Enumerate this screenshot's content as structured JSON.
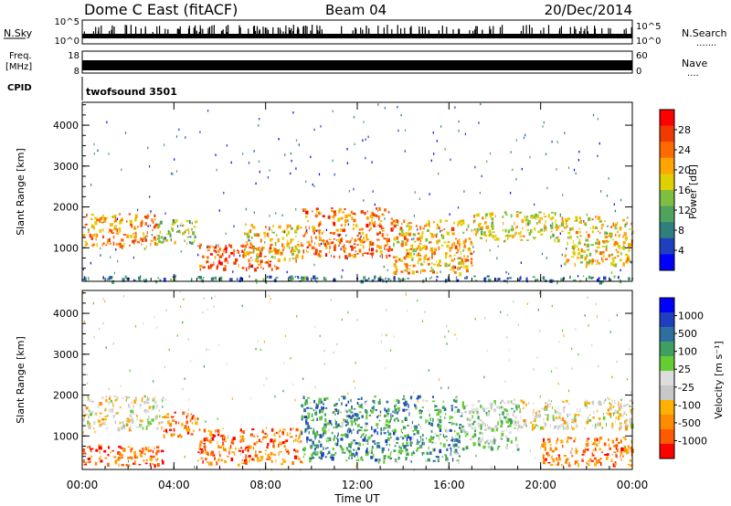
{
  "header": {
    "station": "Dome C East (fitACF)",
    "beam": "Beam 04",
    "date": "20/Dec/2014"
  },
  "strip_nsky": {
    "label": "N.Sky",
    "ticks_left": [
      "10^5",
      "10^0"
    ],
    "ticks_right": [
      "10^5",
      "10^0"
    ],
    "right_label": "N.Search",
    "right_dots": "......."
  },
  "strip_freq": {
    "label_top": "Freq.",
    "label_unit": "[MHz]",
    "ticks_left": [
      "18",
      "8"
    ],
    "ticks_right": [
      "60",
      "0"
    ],
    "right_label": "Nave",
    "right_dots": "...."
  },
  "strip_cpid": {
    "label": "CPID",
    "program": "twofsound 3501"
  },
  "colors": {
    "power": [
      "#0000ff",
      "#1f3fbf",
      "#2f7f7f",
      "#4fa35f",
      "#7fbf3f",
      "#dfd000",
      "#ffa500",
      "#ff6a00",
      "#ef3a00",
      "#ff0000"
    ],
    "velocity": [
      "#ff0000",
      "#ff5a00",
      "#ff8c00",
      "#ffb000",
      "#c8c8c8",
      "#dddddd",
      "#66cc33",
      "#3f9f5f",
      "#2f6fa0",
      "#1f3fbf",
      "#0000ff"
    ]
  },
  "chart_data": [
    {
      "type": "heatmap",
      "title": "",
      "xlabel": "Time UT",
      "ylabel": "Slant Range [km]",
      "x_ticks": [
        "00:00",
        "04:00",
        "08:00",
        "12:00",
        "16:00",
        "20:00",
        "00:00"
      ],
      "xlim_hours": [
        0,
        24
      ],
      "y_ticks": [
        "1000",
        "2000",
        "3000",
        "4000"
      ],
      "ylim": [
        180,
        4560
      ],
      "colorbar": {
        "label": "Power [dB]",
        "ticks": [
          "4",
          "8",
          "12",
          "16",
          "20",
          "24",
          "28"
        ],
        "range": [
          0,
          32
        ]
      },
      "bands": [
        {
          "t0": 0.0,
          "t1": 3.2,
          "r0": 1050,
          "r1": 1850,
          "level": 0.7
        },
        {
          "t0": 3.2,
          "t1": 5.0,
          "r0": 1100,
          "r1": 1700,
          "level": 0.45
        },
        {
          "t0": 5.0,
          "t1": 8.5,
          "r0": 500,
          "r1": 1100,
          "level": 0.8
        },
        {
          "t0": 7.0,
          "t1": 9.5,
          "r0": 700,
          "r1": 1600,
          "level": 0.6
        },
        {
          "t0": 9.5,
          "t1": 13.5,
          "r0": 800,
          "r1": 2000,
          "level": 0.75
        },
        {
          "t0": 13.5,
          "t1": 17.0,
          "r0": 400,
          "r1": 1700,
          "level": 0.65
        },
        {
          "t0": 17.0,
          "t1": 21.0,
          "r0": 1200,
          "r1": 1900,
          "level": 0.55
        },
        {
          "t0": 21.0,
          "t1": 24.0,
          "r0": 600,
          "r1": 1800,
          "level": 0.6
        },
        {
          "t0": 0.0,
          "t1": 24.0,
          "r0": 200,
          "r1": 330,
          "level": 0.25
        }
      ]
    },
    {
      "type": "heatmap",
      "title": "",
      "xlabel": "Time UT",
      "ylabel": "Slant Range [km]",
      "x_ticks": [
        "00:00",
        "04:00",
        "08:00",
        "12:00",
        "16:00",
        "20:00",
        "00:00"
      ],
      "xlim_hours": [
        0,
        24
      ],
      "y_ticks": [
        "1000",
        "2000",
        "3000",
        "4000"
      ],
      "ylim": [
        180,
        4560
      ],
      "colorbar": {
        "label": "Velocity [m s⁻¹]",
        "ticks": [
          "1000",
          "500",
          "100",
          "25",
          "-25",
          "-100",
          "-500",
          "-1000"
        ]
      },
      "bands": [
        {
          "t0": 0.0,
          "t1": 3.5,
          "r0": 1200,
          "r1": 2000,
          "level": 0.42
        },
        {
          "t0": 0.0,
          "t1": 3.5,
          "r0": 300,
          "r1": 800,
          "level": 0.15
        },
        {
          "t0": 3.5,
          "t1": 5.0,
          "r0": 1000,
          "r1": 1600,
          "level": 0.2
        },
        {
          "t0": 5.0,
          "t1": 9.5,
          "r0": 300,
          "r1": 1200,
          "level": 0.18
        },
        {
          "t0": 9.5,
          "t1": 16.5,
          "r0": 400,
          "r1": 2000,
          "level": 0.7
        },
        {
          "t0": 16.5,
          "t1": 19.0,
          "r0": 700,
          "r1": 1900,
          "level": 0.55
        },
        {
          "t0": 19.0,
          "t1": 24.0,
          "r0": 1200,
          "r1": 1900,
          "level": 0.42
        },
        {
          "t0": 20.0,
          "t1": 24.0,
          "r0": 300,
          "r1": 1000,
          "level": 0.2
        }
      ]
    }
  ]
}
